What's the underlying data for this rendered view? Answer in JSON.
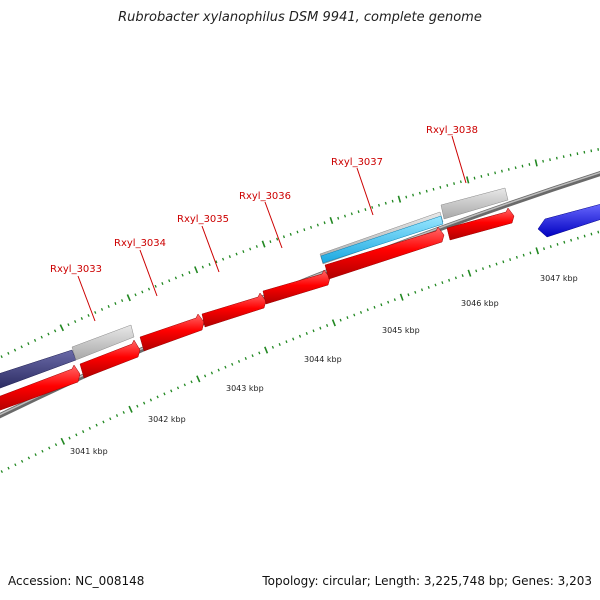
{
  "title": "Rubrobacter xylanophilus DSM 9941, complete genome",
  "footer": {
    "accession": "Accession: NC_008148",
    "summary": "Topology: circular; Length: 3,225,748 bp; Genes: 3,203"
  },
  "colors": {
    "forward_cds": "#ff0000",
    "reverse_cds": "#1a1aff",
    "gene_gray": "#c0c0c0",
    "rna_cyan": "#33ccff",
    "dark_feature": "#3a3a80",
    "backbone": "#8a8a8a",
    "tick": "#228822",
    "label": "#cc0000"
  },
  "gene_labels": [
    {
      "name": "Rxyl_3033"
    },
    {
      "name": "Rxyl_3034"
    },
    {
      "name": "Rxyl_3035"
    },
    {
      "name": "Rxyl_3036"
    },
    {
      "name": "Rxyl_3037"
    },
    {
      "name": "Rxyl_3038"
    }
  ],
  "scale_labels": [
    {
      "text": "3041 kbp"
    },
    {
      "text": "3042 kbp"
    },
    {
      "text": "3043 kbp"
    },
    {
      "text": "3044 kbp"
    },
    {
      "text": "3045 kbp"
    },
    {
      "text": "3046 kbp"
    },
    {
      "text": "3047 kbp"
    }
  ]
}
